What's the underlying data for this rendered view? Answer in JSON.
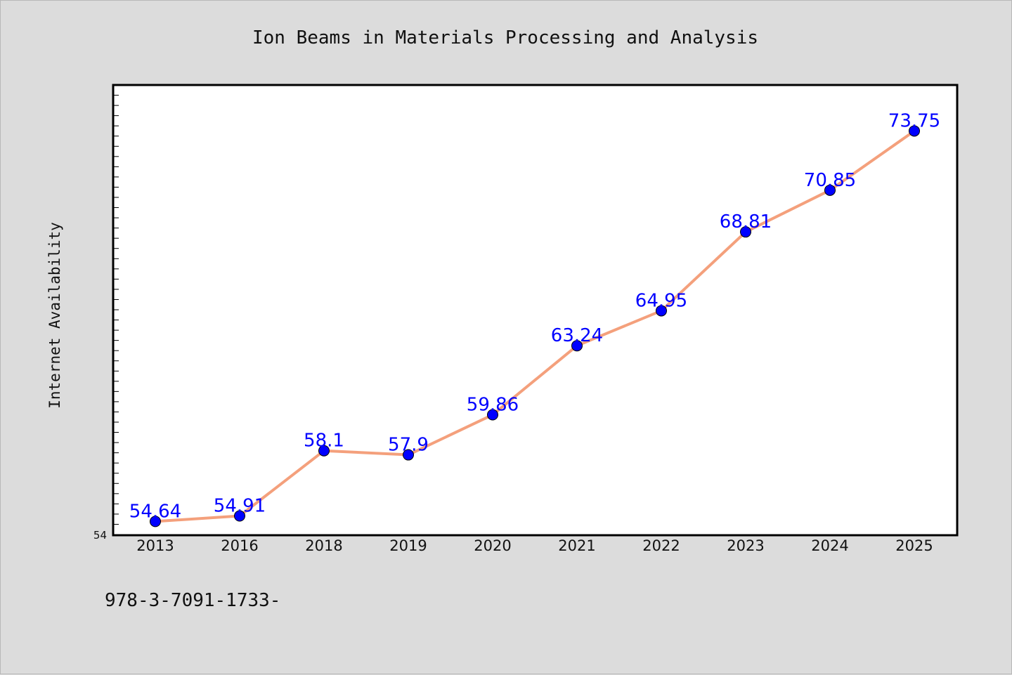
{
  "chart_data": {
    "type": "line",
    "title": "Ion Beams in Materials Processing and Analysis",
    "xlabel": "",
    "ylabel": "Internet Availability",
    "categories": [
      "2013",
      "2016",
      "2018",
      "2019",
      "2020",
      "2021",
      "2022",
      "2023",
      "2024",
      "2025"
    ],
    "series": [
      {
        "values": [
          54.64,
          54.91,
          58.1,
          57.9,
          59.86,
          63.24,
          64.95,
          68.81,
          70.85,
          73.75
        ],
        "line_color": "#f4a07c",
        "marker_color": "#0000ff"
      }
    ],
    "data_labels": [
      "54.64",
      "54.91",
      "58.1",
      "57.9",
      "59.86",
      "63.24",
      "64.95",
      "68.81",
      "70.85",
      "73.75"
    ],
    "y_tick_labels": [
      "54"
    ],
    "ylim": [
      54,
      76
    ],
    "grid": false,
    "legend": "none",
    "label_color": "#0000ff"
  },
  "footer": {
    "isbn": "978-3-7091-1733-"
  }
}
